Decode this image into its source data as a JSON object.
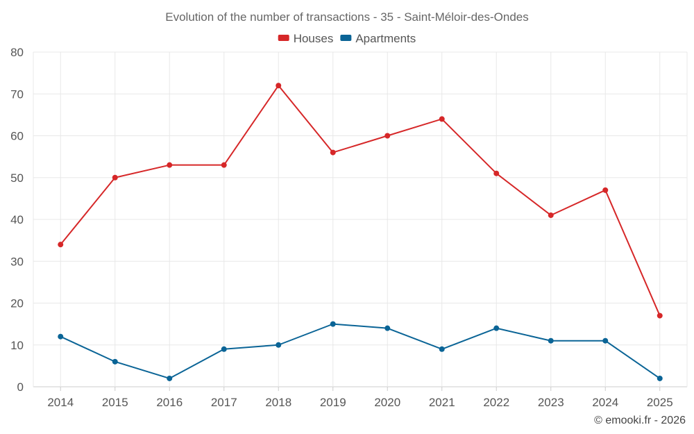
{
  "chart_data": {
    "type": "line",
    "title": "Evolution of the number of transactions - 35 - Saint-Méloir-des-Ondes",
    "categories": [
      "2014",
      "2015",
      "2016",
      "2017",
      "2018",
      "2019",
      "2020",
      "2021",
      "2022",
      "2023",
      "2024",
      "2025"
    ],
    "series": [
      {
        "name": "Houses",
        "color": "#d62728",
        "values": [
          34,
          50,
          53,
          53,
          72,
          56,
          60,
          64,
          51,
          41,
          47,
          17
        ]
      },
      {
        "name": "Apartments",
        "color": "#0a6496",
        "values": [
          12,
          6,
          2,
          9,
          10,
          15,
          14,
          9,
          14,
          11,
          11,
          2
        ]
      }
    ],
    "ylim": [
      0,
      80
    ],
    "yticks": [
      "0",
      "10",
      "20",
      "30",
      "40",
      "50",
      "60",
      "70",
      "80"
    ],
    "grid": true,
    "legend": "top-center",
    "xlabel": "",
    "ylabel": ""
  },
  "credit": "© emooki.fr - 2026"
}
